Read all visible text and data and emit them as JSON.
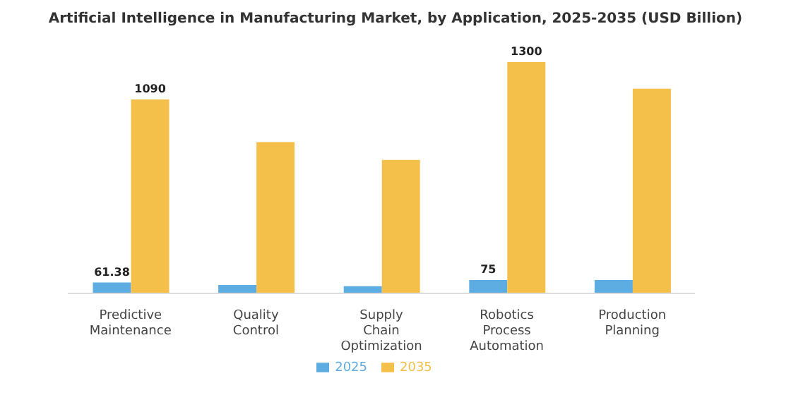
{
  "chart_data": {
    "type": "bar",
    "title": "Artificial Intelligence in Manufacturing Market, by Application, 2025-2035 (USD Billion)",
    "categories": [
      "Predictive Maintenance",
      "Quality Control",
      "Supply Chain Optimization",
      "Robotics Process Automation",
      "Production Planning"
    ],
    "series": [
      {
        "name": "2025",
        "color": "#5dade2",
        "values": [
          61.38,
          48,
          41,
          75,
          75
        ],
        "value_labels": [
          "61.38",
          null,
          null,
          "75",
          null
        ]
      },
      {
        "name": "2035",
        "color": "#f5c04a",
        "values": [
          1090,
          850,
          750,
          1300,
          1150
        ],
        "value_labels": [
          "1090",
          null,
          null,
          "1300",
          null
        ]
      }
    ],
    "legend": "bottom",
    "grid": false
  }
}
